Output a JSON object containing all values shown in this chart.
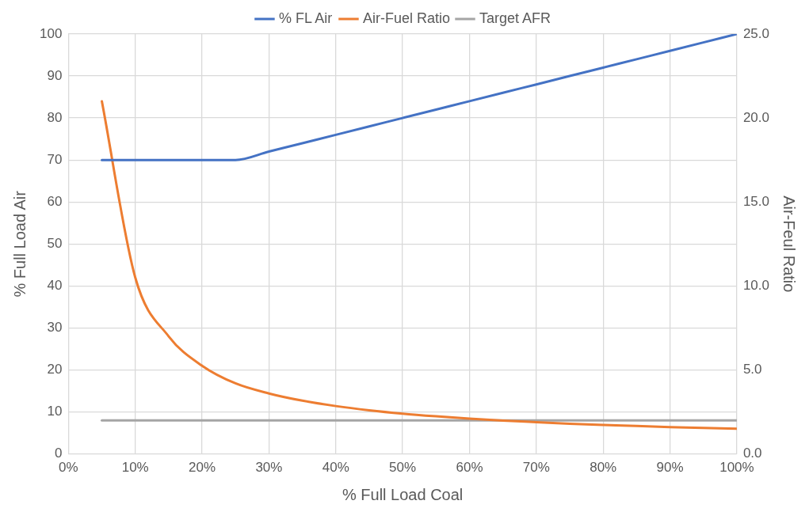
{
  "chart_data": {
    "type": "line",
    "xlabel": "% Full Load Coal",
    "ylabel": "% Full Load Air",
    "y2label": "Air-Feul Ratio",
    "x": [
      5,
      10,
      15,
      20,
      25,
      30,
      35,
      40,
      45,
      50,
      55,
      60,
      65,
      70,
      75,
      80,
      85,
      90,
      95,
      100
    ],
    "xlim": [
      0,
      100
    ],
    "xticks": [
      {
        "value": 0,
        "label": "0%"
      },
      {
        "value": 10,
        "label": "10%"
      },
      {
        "value": 20,
        "label": "20%"
      },
      {
        "value": 30,
        "label": "30%"
      },
      {
        "value": 40,
        "label": "40%"
      },
      {
        "value": 50,
        "label": "50%"
      },
      {
        "value": 60,
        "label": "60%"
      },
      {
        "value": 70,
        "label": "70%"
      },
      {
        "value": 80,
        "label": "80%"
      },
      {
        "value": 90,
        "label": "90%"
      },
      {
        "value": 100,
        "label": "100%"
      }
    ],
    "ylim": [
      0,
      100
    ],
    "yticks": [
      0,
      10,
      20,
      30,
      40,
      50,
      60,
      70,
      80,
      90,
      100
    ],
    "y2lim": [
      0,
      25
    ],
    "y2ticks": [
      {
        "value": 0,
        "label": "0.0"
      },
      {
        "value": 5,
        "label": "5.0"
      },
      {
        "value": 10,
        "label": "10.0"
      },
      {
        "value": 15,
        "label": "15.0"
      },
      {
        "value": 20,
        "label": "20.0"
      },
      {
        "value": 25,
        "label": "25.0"
      }
    ],
    "series": [
      {
        "name": "% FL Air",
        "color": "#4472c4",
        "values": [
          70,
          70,
          70,
          70,
          70,
          72,
          74,
          76,
          78,
          80,
          82,
          84,
          86,
          88,
          90,
          92,
          94,
          96,
          98,
          100
        ]
      },
      {
        "name": "Air-Fuel Ratio",
        "color": "#ed7d31",
        "axis": "y2",
        "values": [
          21,
          10.5,
          7.0,
          5.25,
          4.2,
          3.6,
          3.17,
          2.85,
          2.6,
          2.4,
          2.24,
          2.1,
          1.98,
          1.89,
          1.8,
          1.73,
          1.66,
          1.6,
          1.55,
          1.5
        ]
      },
      {
        "name": "Target AFR",
        "color": "#a5a5a5",
        "axis": "y2",
        "values": [
          2,
          2,
          2,
          2,
          2,
          2,
          2,
          2,
          2,
          2,
          2,
          2,
          2,
          2,
          2,
          2,
          2,
          2,
          2,
          2
        ]
      }
    ],
    "grid": true,
    "legend": "top",
    "marker": "none",
    "line_style": "solid"
  }
}
